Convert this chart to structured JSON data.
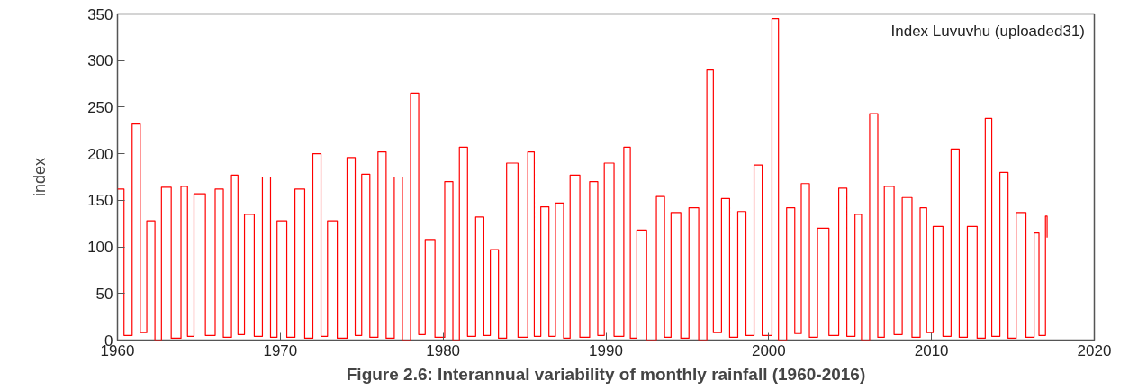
{
  "chart_data": {
    "type": "step",
    "title": "Figure 2.6: Interannual variability of monthly rainfall (1960-2016)",
    "ylabel": "index",
    "xlim": [
      1960,
      2020
    ],
    "xticks": [
      1960,
      1970,
      1980,
      1990,
      2000,
      2010,
      2020
    ],
    "ylim": [
      0,
      350
    ],
    "yticks": [
      0,
      50,
      100,
      150,
      200,
      250,
      300,
      350
    ],
    "grid": false,
    "legend": "top right",
    "series": [
      {
        "name": "Index Luvuvhu (uploaded31)",
        "color": "#ff0000",
        "x": [
          1960.0,
          1960.4,
          1960.9,
          1961.4,
          1961.8,
          1962.3,
          1962.7,
          1963.3,
          1963.9,
          1964.3,
          1964.7,
          1965.4,
          1966.0,
          1966.5,
          1967.0,
          1967.4,
          1967.8,
          1968.4,
          1968.9,
          1969.4,
          1969.8,
          1970.4,
          1970.9,
          1971.5,
          1972.0,
          1972.5,
          1972.9,
          1973.5,
          1974.1,
          1974.6,
          1975.0,
          1975.5,
          1976.0,
          1976.5,
          1977.0,
          1977.5,
          1978.0,
          1978.5,
          1978.9,
          1979.5,
          1980.1,
          1980.6,
          1981.0,
          1981.5,
          1982.0,
          1982.5,
          1982.9,
          1983.4,
          1983.9,
          1984.6,
          1985.2,
          1985.6,
          1986.0,
          1986.5,
          1986.9,
          1987.4,
          1987.8,
          1988.4,
          1989.0,
          1989.5,
          1989.9,
          1990.5,
          1991.1,
          1991.5,
          1991.9,
          1992.5,
          1993.1,
          1993.6,
          1994.0,
          1994.6,
          1995.1,
          1995.7,
          1996.2,
          1996.6,
          1997.1,
          1997.6,
          1998.1,
          1998.6,
          1999.1,
          1999.6,
          2000.2,
          2000.6,
          2001.1,
          2001.6,
          2002.0,
          2002.5,
          2003.0,
          2003.7,
          2004.3,
          2004.8,
          2005.3,
          2005.7,
          2006.2,
          2006.7,
          2007.1,
          2007.7,
          2008.2,
          2008.8,
          2009.3,
          2009.7,
          2010.1,
          2010.7,
          2011.2,
          2011.7,
          2012.2,
          2012.8,
          2013.3,
          2013.7,
          2014.2,
          2014.7,
          2015.2,
          2015.8,
          2016.3,
          2016.6,
          2017.0,
          2017.1
        ],
        "values": [
          162,
          5,
          232,
          8,
          128,
          0,
          164,
          2,
          165,
          4,
          157,
          5,
          162,
          3,
          177,
          6,
          135,
          4,
          175,
          3,
          128,
          3,
          162,
          2,
          200,
          4,
          128,
          2,
          196,
          5,
          178,
          3,
          202,
          2,
          175,
          0,
          265,
          6,
          108,
          3,
          170,
          0,
          207,
          4,
          132,
          5,
          97,
          2,
          190,
          3,
          202,
          4,
          143,
          4,
          147,
          2,
          177,
          3,
          170,
          5,
          190,
          4,
          207,
          2,
          118,
          0,
          154,
          3,
          137,
          2,
          142,
          0,
          290,
          8,
          152,
          3,
          138,
          5,
          188,
          5,
          345,
          0,
          142,
          7,
          168,
          3,
          120,
          5,
          163,
          4,
          135,
          0,
          243,
          3,
          165,
          6,
          153,
          3,
          142,
          8,
          122,
          4,
          205,
          3,
          122,
          2,
          238,
          4,
          180,
          2,
          137,
          3,
          115,
          5,
          133,
          110
        ]
      }
    ]
  }
}
